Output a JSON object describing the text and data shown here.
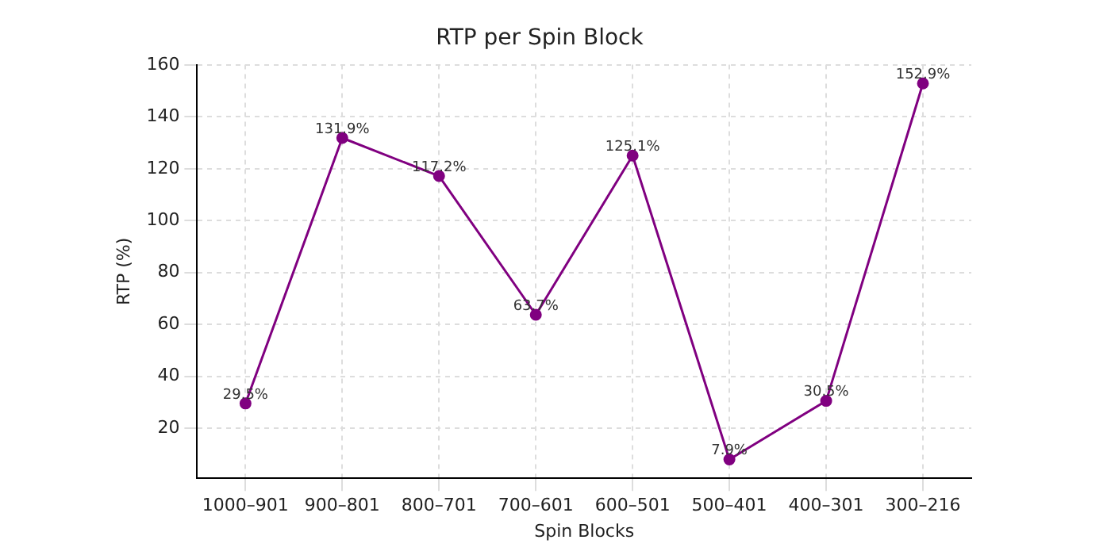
{
  "chart_data": {
    "type": "line",
    "title": "RTP per Spin Block",
    "xlabel": "Spin Blocks",
    "ylabel": "RTP (%)",
    "categories": [
      "1000–901",
      "900–801",
      "800–701",
      "700–601",
      "600–501",
      "500–401",
      "400–301",
      "300–216"
    ],
    "series": [
      {
        "color": "#800080",
        "values": [
          29.5,
          131.9,
          117.2,
          63.7,
          125.1,
          7.9,
          30.5,
          152.9
        ],
        "value_labels": [
          "29.5%",
          "131.9%",
          "117.2%",
          "63.7%",
          "125.1%",
          "7.9%",
          "30.5%",
          "152.9%"
        ]
      }
    ],
    "ylim": [
      0.65,
      160.15
    ],
    "yticks": [
      20,
      40,
      60,
      80,
      100,
      120,
      140,
      160
    ],
    "grid": true,
    "marker": "circle",
    "line_style": "solid",
    "legend": false
  }
}
